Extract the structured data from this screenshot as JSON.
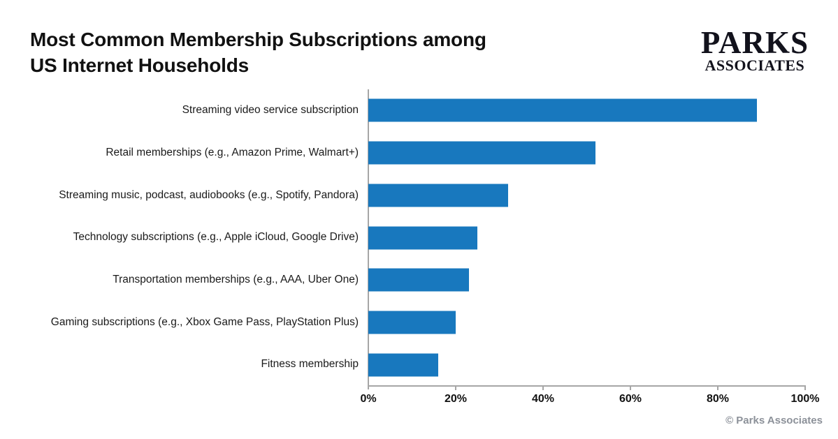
{
  "header": {
    "title_line1": "Most Common Membership Subscriptions among",
    "title_line2": "US Internet Households",
    "logo_line1": "PARKS",
    "logo_line2": "ASSOCIATES"
  },
  "footer": {
    "copyright": "© Parks Associates"
  },
  "chart_data": {
    "type": "bar",
    "orientation": "horizontal",
    "title": "Most Common Membership Subscriptions among US Internet Households",
    "categories": [
      "Streaming video service subscription",
      "Retail memberships (e.g., Amazon Prime, Walmart+)",
      "Streaming music, podcast, audiobooks (e.g., Spotify, Pandora)",
      "Technology subscriptions (e.g., Apple iCloud, Google Drive)",
      "Transportation memberships (e.g., AAA, Uber One)",
      "Gaming subscriptions (e.g., Xbox Game Pass, PlayStation Plus)",
      "Fitness membership"
    ],
    "values": [
      89,
      52,
      32,
      25,
      23,
      20,
      16
    ],
    "unit": "%",
    "xlabel": "",
    "ylabel": "",
    "xlim": [
      0,
      100
    ],
    "xtick_values": [
      0,
      20,
      40,
      60,
      80,
      100
    ],
    "xtick_labels": [
      "0%",
      "20%",
      "40%",
      "60%",
      "80%",
      "100%"
    ],
    "grid": false,
    "legend": false,
    "bar_color": "#1878BE",
    "axis_color": "#A6A6A6"
  }
}
